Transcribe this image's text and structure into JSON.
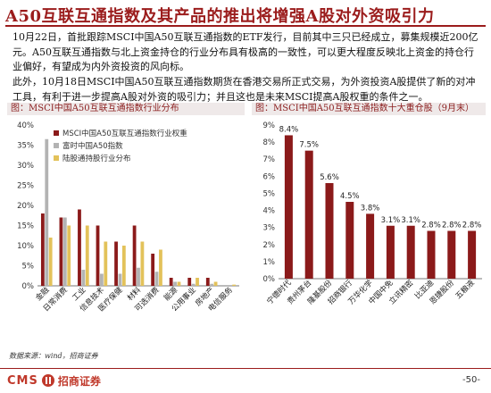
{
  "title": "A50互联互通指数及其产品的推出将增强A股对外资吸引力",
  "paragraphs": [
    "10月22日，首批跟踪MSCI中国A50互联互通指数的ETF发行，目前其中三只已经成立，募集规模近200亿元。A50互联互通指数与北上资金持仓的行业分布具有极高的一致性，可以更大程度反映北上资金的持仓行业偏好，有望成为内外资投资的风向标。",
    "此外，10月18日MSCI中国A50互联互通指数期货在香港交易所正式交易，为外资投资A股提供了新的对冲工具，有利于进一步提高A股对外资的吸引力；并且这也是未来MSCI提高A股权重的条件之一。"
  ],
  "left_chart_caption": "图：MSCI中国A50互联互通指数行业分布",
  "right_chart_caption": "图：MSCI中国A50互联互通指数十大重仓股（9月末）",
  "source": "数据来源：wind，招商证券",
  "logo": {
    "cms": "CMS",
    "cn": "招商证券"
  },
  "page_number": "-50-",
  "colors": {
    "accent": "#9b1c1c",
    "series1": "#8b1a1a",
    "series2": "#b3b3b3",
    "series3": "#e3c25a",
    "bar": "#8b1a1a"
  },
  "chart_data": [
    {
      "type": "bar",
      "categories": [
        "金融",
        "日常消费",
        "工业",
        "信息技术",
        "医疗保健",
        "材料",
        "可选消费",
        "能源",
        "公用事业",
        "房地产",
        "电信服务"
      ],
      "series": [
        {
          "name": "MSCI中国A50互联互通指数行业权重",
          "values": [
            18,
            17,
            19,
            15,
            11,
            15,
            8,
            2,
            2,
            2,
            0
          ]
        },
        {
          "name": "富时中国A50指数",
          "values": [
            36.5,
            17,
            4,
            3,
            3,
            4.5,
            3.5,
            1,
            0.5,
            0.5,
            0
          ]
        },
        {
          "name": "陆股通持股行业分布",
          "values": [
            12,
            15,
            15,
            11,
            10,
            11,
            9,
            1,
            2,
            1,
            0.3
          ]
        }
      ],
      "yticks": [
        "0%",
        "5%",
        "10%",
        "15%",
        "20%",
        "25%",
        "30%",
        "35%",
        "40%"
      ],
      "ylim": [
        0,
        40
      ]
    },
    {
      "type": "bar",
      "categories": [
        "宁德时代",
        "贵州茅台",
        "隆基股份",
        "招商银行",
        "万华化学",
        "中国中免",
        "立讯精密",
        "比亚迪",
        "恩捷股份",
        "五粮液"
      ],
      "values": [
        8.4,
        7.5,
        5.6,
        4.5,
        3.8,
        3.1,
        3.1,
        2.8,
        2.8,
        2.8
      ],
      "data_labels": [
        "8.4%",
        "7.5%",
        "5.6%",
        "4.5%",
        "3.8%",
        "3.1%",
        "3.1%",
        "2.8%",
        "2.8%",
        "2.8%"
      ],
      "yticks": [
        "0%",
        "1%",
        "2%",
        "3%",
        "4%",
        "5%",
        "6%",
        "7%",
        "8%",
        "9%"
      ],
      "ylim": [
        0,
        9
      ]
    }
  ]
}
